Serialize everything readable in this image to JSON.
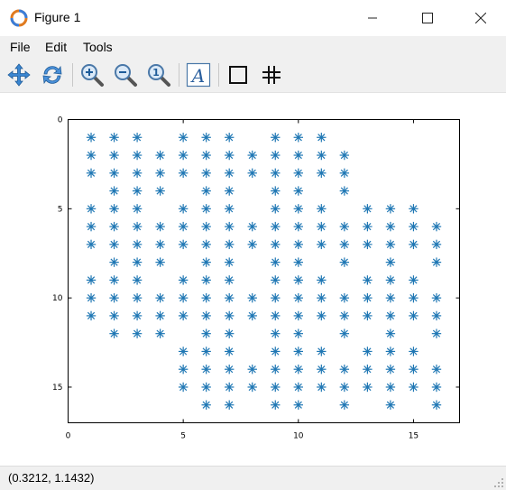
{
  "window": {
    "title": "Figure 1",
    "controls": {
      "minimize": "—",
      "maximize": "☐",
      "close": "✕"
    },
    "icon": "octave-figure-icon"
  },
  "menu": {
    "items": [
      "File",
      "Edit",
      "Tools"
    ]
  },
  "toolbar": {
    "tools": [
      "pan-icon",
      "rotate-icon",
      "zoom-in-icon",
      "zoom-out-icon",
      "zoom-reset-icon",
      "text-tool-icon",
      "axes-box-icon",
      "grid-icon"
    ],
    "text_tool_label": "A",
    "zoom_reset_label": "1"
  },
  "status": {
    "coordinates": "(0.3212, 1.1432)"
  },
  "chart_data": {
    "type": "scatter",
    "marker": "*",
    "color": "#1f77b4",
    "xlim": [
      0,
      17
    ],
    "ylim": [
      0,
      17
    ],
    "y_reversed": true,
    "x_ticks": [
      0,
      5,
      10,
      15
    ],
    "y_ticks": [
      0,
      5,
      10,
      15
    ],
    "x_tick_labels": [
      "0",
      "5",
      "10",
      "15"
    ],
    "y_tick_labels": [
      "0",
      "5",
      "10",
      "15"
    ],
    "rows": [
      {
        "y": 1,
        "x": [
          1,
          2,
          3,
          5,
          6,
          7,
          9,
          10,
          11
        ]
      },
      {
        "y": 2,
        "x": [
          1,
          2,
          3,
          4,
          5,
          6,
          7,
          8,
          9,
          10,
          11,
          12
        ]
      },
      {
        "y": 3,
        "x": [
          1,
          2,
          3,
          4,
          5,
          6,
          7,
          8,
          9,
          10,
          11,
          12
        ]
      },
      {
        "y": 4,
        "x": [
          2,
          3,
          4,
          6,
          7,
          9,
          10,
          12
        ]
      },
      {
        "y": 5,
        "x": [
          1,
          2,
          3,
          5,
          6,
          7,
          9,
          10,
          11,
          13,
          14,
          15
        ]
      },
      {
        "y": 6,
        "x": [
          1,
          2,
          3,
          4,
          5,
          6,
          7,
          8,
          9,
          10,
          11,
          12,
          13,
          14,
          15,
          16
        ]
      },
      {
        "y": 7,
        "x": [
          1,
          2,
          3,
          4,
          5,
          6,
          7,
          8,
          9,
          10,
          11,
          12,
          13,
          14,
          15,
          16
        ]
      },
      {
        "y": 8,
        "x": [
          2,
          3,
          4,
          6,
          7,
          9,
          10,
          12,
          14,
          16
        ]
      },
      {
        "y": 9,
        "x": [
          1,
          2,
          3,
          5,
          6,
          7,
          9,
          10,
          11,
          13,
          14,
          15
        ]
      },
      {
        "y": 10,
        "x": [
          1,
          2,
          3,
          4,
          5,
          6,
          7,
          8,
          9,
          10,
          11,
          12,
          13,
          14,
          15,
          16
        ]
      },
      {
        "y": 11,
        "x": [
          1,
          2,
          3,
          4,
          5,
          6,
          7,
          8,
          9,
          10,
          11,
          12,
          13,
          14,
          15,
          16
        ]
      },
      {
        "y": 12,
        "x": [
          2,
          3,
          4,
          6,
          7,
          9,
          10,
          12,
          14,
          16
        ]
      },
      {
        "y": 13,
        "x": [
          5,
          6,
          7,
          9,
          10,
          11,
          13,
          14,
          15
        ]
      },
      {
        "y": 14,
        "x": [
          5,
          6,
          7,
          8,
          9,
          10,
          11,
          12,
          13,
          14,
          15,
          16
        ]
      },
      {
        "y": 15,
        "x": [
          5,
          6,
          7,
          8,
          9,
          10,
          11,
          12,
          13,
          14,
          15,
          16
        ]
      },
      {
        "y": 16,
        "x": [
          6,
          7,
          9,
          10,
          12,
          14,
          16
        ]
      }
    ]
  }
}
